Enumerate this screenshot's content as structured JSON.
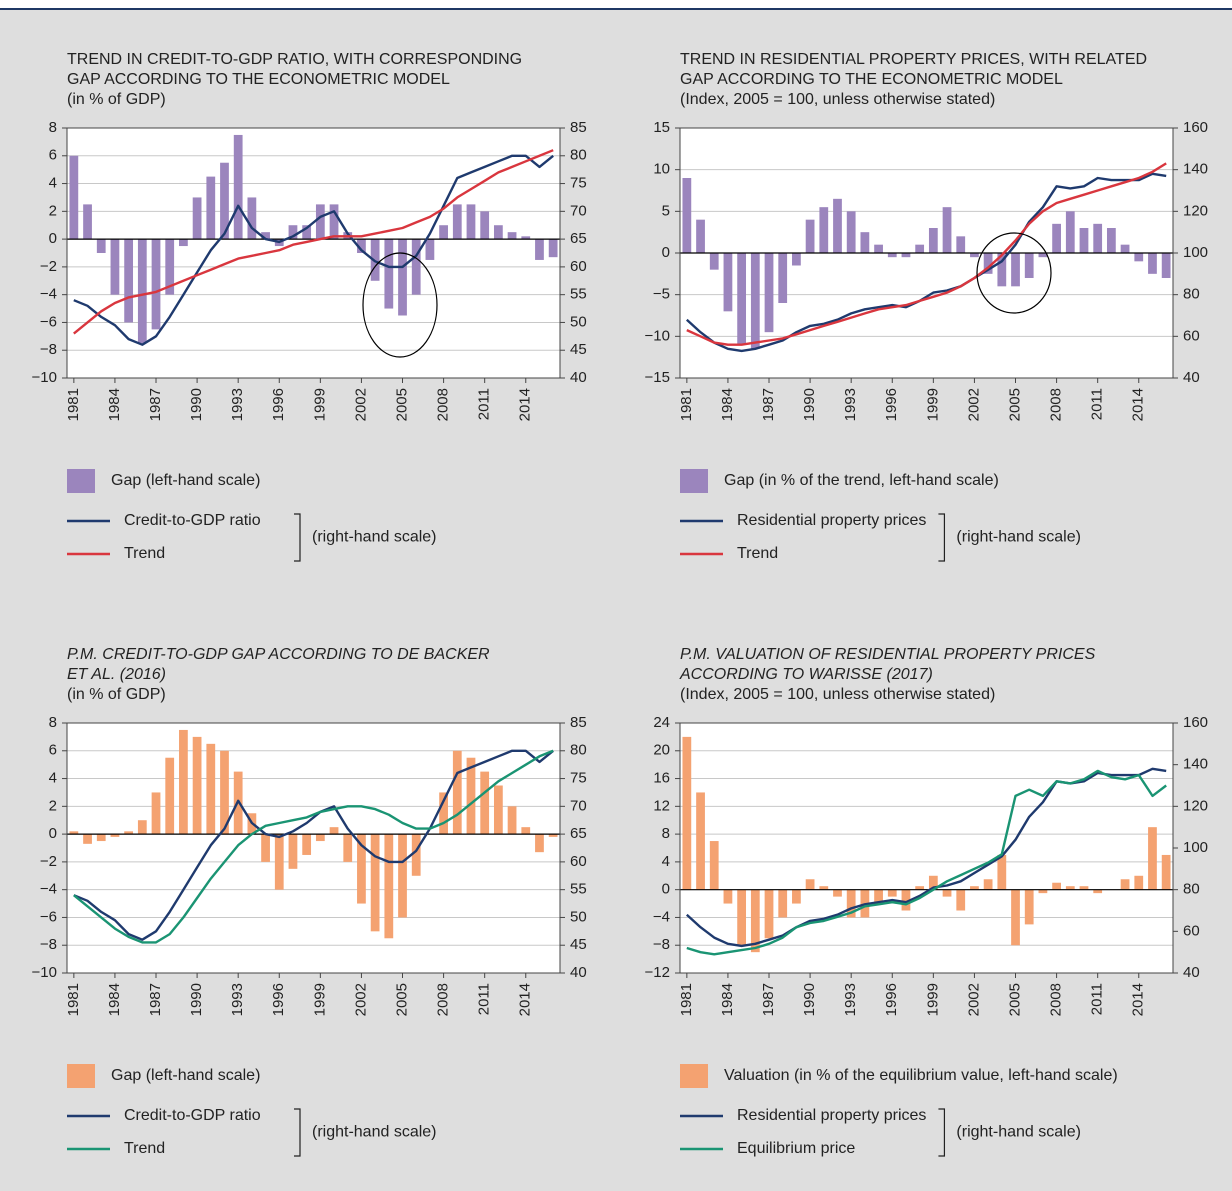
{
  "chart_data": [
    {
      "type": "combo",
      "title": [
        "TREND IN CREDIT-TO-GDP RATIO, WITH CORRESPONDING",
        "GAP ACCORDING TO THE ECONOMETRIC MODEL"
      ],
      "subtitle": "(in % of GDP)",
      "title_style": "normal",
      "x": [
        1981,
        1982,
        1983,
        1984,
        1985,
        1986,
        1987,
        1988,
        1989,
        1990,
        1991,
        1992,
        1993,
        1994,
        1995,
        1996,
        1997,
        1998,
        1999,
        2000,
        2001,
        2002,
        2003,
        2004,
        2005,
        2006,
        2007,
        2008,
        2009,
        2010,
        2011,
        2012,
        2013,
        2014,
        2015,
        2016
      ],
      "xlim": [
        1980.5,
        2016.5
      ],
      "xticks": [
        1981,
        1984,
        1987,
        1990,
        1993,
        1996,
        1999,
        2002,
        2005,
        2008,
        2011,
        2014
      ],
      "ylim": [
        -10,
        8
      ],
      "yticks": [
        {
          "value": -10,
          "label": "−10"
        },
        {
          "value": -8,
          "label": "−8"
        },
        {
          "value": -6,
          "label": "−6"
        },
        {
          "value": -4,
          "label": "−4"
        },
        {
          "value": -2,
          "label": "−2"
        },
        0,
        2,
        4,
        6,
        8
      ],
      "y2lim": [
        40,
        85
      ],
      "y2ticks": [
        40,
        45,
        50,
        55,
        60,
        65,
        70,
        75,
        80,
        85
      ],
      "grid": true,
      "series": [
        {
          "name": "Gap (left-hand scale)",
          "color": "#9b85bd",
          "type": "bar",
          "axis": "y",
          "values": [
            6,
            2.5,
            -1,
            -4,
            -6,
            -7.5,
            -6.5,
            -4,
            -0.5,
            3,
            4.5,
            5.5,
            7.5,
            3,
            0.5,
            -0.5,
            1,
            1,
            2.5,
            2.5,
            0.5,
            -1,
            -3,
            -5,
            -5.5,
            -4,
            -1.5,
            1,
            2.5,
            2.5,
            2,
            1,
            0.5,
            0.2,
            -1.5,
            -1.3
          ]
        },
        {
          "name": "Credit-to-GDP ratio",
          "color": "#1f3a6e",
          "type": "line",
          "axis": "y2",
          "values": [
            54,
            53,
            51,
            49.5,
            47,
            46,
            47.5,
            51,
            55,
            59,
            63,
            66,
            71,
            67,
            65,
            64.5,
            65.5,
            67,
            69,
            70,
            66,
            63,
            61,
            60,
            60,
            62,
            66,
            71,
            76,
            77,
            78,
            79,
            80,
            80,
            78,
            80
          ]
        },
        {
          "name": "Trend",
          "color": "#d9363e",
          "type": "line",
          "axis": "y2",
          "values": [
            48,
            50,
            52,
            53.5,
            54.5,
            55,
            55.5,
            56.5,
            57.5,
            58.5,
            59.5,
            60.5,
            61.5,
            62,
            62.5,
            63,
            64,
            64.5,
            65,
            65.5,
            65.5,
            65.5,
            66,
            66.5,
            67,
            68,
            69,
            70.5,
            72.5,
            74,
            75.5,
            77,
            78,
            79,
            80,
            81
          ]
        }
      ],
      "legend_group_label": "(right-hand scale)"
    },
    {
      "type": "combo",
      "title": [
        "TREND IN RESIDENTIAL PROPERTY PRICES, WITH RELATED",
        "GAP ACCORDING TO THE ECONOMETRIC MODEL"
      ],
      "subtitle": "(Index, 2005 = 100, unless otherwise stated)",
      "title_style": "normal",
      "x": [
        1981,
        1982,
        1983,
        1984,
        1985,
        1986,
        1987,
        1988,
        1989,
        1990,
        1991,
        1992,
        1993,
        1994,
        1995,
        1996,
        1997,
        1998,
        1999,
        2000,
        2001,
        2002,
        2003,
        2004,
        2005,
        2006,
        2007,
        2008,
        2009,
        2010,
        2011,
        2012,
        2013,
        2014,
        2015,
        2016
      ],
      "xlim": [
        1980.5,
        2016.5
      ],
      "xticks": [
        1981,
        1984,
        1987,
        1990,
        1993,
        1996,
        1999,
        2002,
        2005,
        2008,
        2011,
        2014
      ],
      "ylim": [
        -15,
        15
      ],
      "yticks": [
        {
          "value": -15,
          "label": "−15"
        },
        {
          "value": -10,
          "label": "−10"
        },
        {
          "value": -5,
          "label": "−5"
        },
        0,
        5,
        10,
        15
      ],
      "y2lim": [
        40,
        160
      ],
      "y2ticks": [
        40,
        60,
        80,
        100,
        120,
        140,
        160
      ],
      "grid": true,
      "series": [
        {
          "name": "Gap (in % of the trend, left-hand scale)",
          "color": "#9b85bd",
          "type": "bar",
          "axis": "y",
          "values": [
            9,
            4,
            -2,
            -7,
            -11,
            -11.5,
            -9.5,
            -6,
            -1.5,
            4,
            5.5,
            6.5,
            5,
            2.5,
            1,
            -0.5,
            -0.5,
            1,
            3,
            5.5,
            2,
            -0.5,
            -2.5,
            -4,
            -4,
            -3,
            -0.5,
            3.5,
            5,
            3,
            3.5,
            3,
            1,
            -1,
            -2.5,
            -3
          ]
        },
        {
          "name": "Residential property prices",
          "color": "#1f3a6e",
          "type": "line",
          "axis": "y2",
          "values": [
            68,
            62,
            57,
            54,
            53,
            54,
            56,
            58,
            62,
            65,
            66,
            68,
            71,
            73,
            74,
            75,
            74,
            77,
            81,
            82,
            84,
            88,
            92,
            96,
            104,
            115,
            122,
            132,
            131,
            132,
            136,
            135,
            135,
            135,
            138,
            137
          ]
        },
        {
          "name": "Trend",
          "color": "#d9363e",
          "type": "line",
          "axis": "y2",
          "values": [
            63,
            60,
            57,
            56,
            56,
            57,
            58,
            59,
            61,
            63,
            65,
            67,
            69,
            71,
            73,
            74,
            75,
            77,
            79,
            81,
            84,
            88,
            93,
            99,
            106,
            114,
            120,
            124,
            126,
            128,
            130,
            132,
            134,
            136,
            139,
            143
          ]
        }
      ],
      "legend_group_label": "(right-hand scale)"
    },
    {
      "type": "combo",
      "title": [
        "P.M. CREDIT-TO-GDP GAP ACCORDING TO DE BACKER",
        "ET AL. (2016)"
      ],
      "subtitle": "(in % of GDP)",
      "title_style": "italic",
      "x": [
        1981,
        1982,
        1983,
        1984,
        1985,
        1986,
        1987,
        1988,
        1989,
        1990,
        1991,
        1992,
        1993,
        1994,
        1995,
        1996,
        1997,
        1998,
        1999,
        2000,
        2001,
        2002,
        2003,
        2004,
        2005,
        2006,
        2007,
        2008,
        2009,
        2010,
        2011,
        2012,
        2013,
        2014,
        2015,
        2016
      ],
      "xlim": [
        1980.5,
        2016.5
      ],
      "xticks": [
        1981,
        1984,
        1987,
        1990,
        1993,
        1996,
        1999,
        2002,
        2005,
        2008,
        2011,
        2014
      ],
      "ylim": [
        -10,
        8
      ],
      "yticks": [
        {
          "value": -10,
          "label": "−10"
        },
        {
          "value": -8,
          "label": "−8"
        },
        {
          "value": -6,
          "label": "−6"
        },
        {
          "value": -4,
          "label": "−4"
        },
        {
          "value": -2,
          "label": "−2"
        },
        0,
        2,
        4,
        6,
        8
      ],
      "y2lim": [
        40,
        85
      ],
      "y2ticks": [
        40,
        45,
        50,
        55,
        60,
        65,
        70,
        75,
        80,
        85
      ],
      "grid": true,
      "series": [
        {
          "name": "Gap (left-hand scale)",
          "color": "#f4a271",
          "type": "bar",
          "axis": "y",
          "values": [
            0.2,
            -0.7,
            -0.5,
            -0.2,
            0.2,
            1,
            3,
            5.5,
            7.5,
            7,
            6.5,
            6,
            4.5,
            1.5,
            -2,
            -4,
            -2.5,
            -1.5,
            -0.5,
            0.5,
            -2,
            -5,
            -7,
            -7.5,
            -6,
            -3,
            0,
            3,
            6,
            5.5,
            4.5,
            3.5,
            2,
            0.5,
            -1.3,
            -0.2
          ]
        },
        {
          "name": "Credit-to-GDP ratio",
          "color": "#1f3a6e",
          "type": "line",
          "axis": "y2",
          "values": [
            54,
            53,
            51,
            49.5,
            47,
            46,
            47.5,
            51,
            55,
            59,
            63,
            66,
            71,
            67,
            65,
            64.5,
            65.5,
            67,
            69,
            70,
            66,
            63,
            61,
            60,
            60,
            62,
            66,
            71,
            76,
            77,
            78,
            79,
            80,
            80,
            78,
            80
          ]
        },
        {
          "name": "Trend",
          "color": "#1a9473",
          "type": "line",
          "axis": "y2",
          "values": [
            54,
            52,
            50,
            48,
            46.5,
            45.5,
            45.5,
            47,
            50,
            53.5,
            57,
            60,
            63,
            65,
            66.5,
            67,
            67.5,
            68,
            69,
            69.5,
            70,
            70,
            69.5,
            68.5,
            67,
            66,
            66,
            67,
            68.5,
            70.5,
            72.5,
            74.5,
            76,
            77.5,
            79,
            80
          ]
        }
      ],
      "legend_group_label": "(right-hand scale)"
    },
    {
      "type": "combo",
      "title": [
        "P.M. VALUATION OF RESIDENTIAL PROPERTY PRICES",
        "ACCORDING TO WARISSE (2017)"
      ],
      "subtitle": "(Index, 2005 = 100, unless otherwise stated)",
      "title_style": "italic",
      "x": [
        1981,
        1982,
        1983,
        1984,
        1985,
        1986,
        1987,
        1988,
        1989,
        1990,
        1991,
        1992,
        1993,
        1994,
        1995,
        1996,
        1997,
        1998,
        1999,
        2000,
        2001,
        2002,
        2003,
        2004,
        2005,
        2006,
        2007,
        2008,
        2009,
        2010,
        2011,
        2012,
        2013,
        2014,
        2015,
        2016
      ],
      "xlim": [
        1980.5,
        2016.5
      ],
      "xticks": [
        1981,
        1984,
        1987,
        1990,
        1993,
        1996,
        1999,
        2002,
        2005,
        2008,
        2011,
        2014
      ],
      "ylim": [
        -12,
        24
      ],
      "yticks": [
        {
          "value": -12,
          "label": "−12"
        },
        {
          "value": -8,
          "label": "−8"
        },
        {
          "value": -4,
          "label": "−4"
        },
        0,
        4,
        8,
        12,
        16,
        20,
        24
      ],
      "y2lim": [
        40,
        160
      ],
      "y2ticks": [
        40,
        60,
        80,
        100,
        120,
        140,
        160
      ],
      "grid": true,
      "series": [
        {
          "name": "Valuation (in % of the equilibrium value, left-hand scale)",
          "color": "#f4a271",
          "type": "bar",
          "axis": "y",
          "values": [
            22,
            14,
            7,
            -2,
            -8,
            -9,
            -7,
            -4,
            -2,
            1.5,
            0.5,
            -1,
            -4,
            -4,
            -2,
            -1,
            -3,
            0.5,
            2,
            -1,
            -3,
            0.5,
            1.5,
            5,
            -8,
            -5,
            -0.5,
            1,
            0.5,
            0.5,
            -0.5,
            0,
            1.5,
            2,
            9,
            5
          ]
        },
        {
          "name": "Residential property prices",
          "color": "#1f3a6e",
          "type": "line",
          "axis": "y2",
          "values": [
            68,
            62,
            57,
            54,
            53,
            54,
            56,
            58,
            62,
            65,
            66,
            68,
            71,
            73,
            74,
            75,
            74,
            77,
            81,
            82,
            84,
            88,
            92,
            96,
            104,
            115,
            122,
            132,
            131,
            132,
            136,
            135,
            135,
            135,
            138,
            137
          ]
        },
        {
          "name": "Equilibrium price",
          "color": "#1a9473",
          "type": "line",
          "axis": "y2",
          "values": [
            52,
            50,
            49,
            50,
            51,
            52,
            54,
            57,
            62,
            64,
            65,
            67,
            69,
            72,
            73,
            74,
            73,
            76,
            80,
            84,
            87,
            90,
            93,
            97,
            125,
            128,
            125,
            132,
            131,
            133,
            137,
            134,
            133,
            135,
            125,
            130
          ]
        }
      ],
      "legend_group_label": "(right-hand scale)"
    }
  ]
}
